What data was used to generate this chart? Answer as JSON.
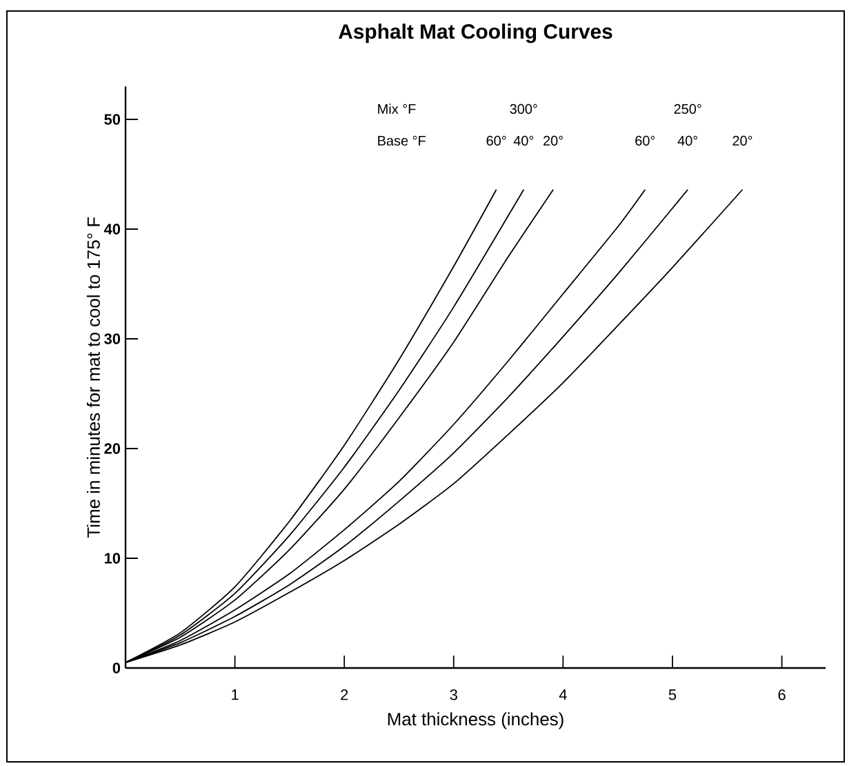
{
  "chart_data": {
    "type": "line",
    "title": "Asphalt Mat Cooling Curves",
    "xlabel": "Mat thickness  (inches)",
    "ylabel": "Time in minutes for mat to cool to 175° F",
    "annotations": [
      "Mix °F",
      "Base °F",
      "300°",
      "250°"
    ],
    "xlim": [
      0,
      6.4
    ],
    "ylim": [
      0,
      53
    ],
    "xticks": [
      1,
      2,
      3,
      4,
      5,
      6
    ],
    "yticks": [
      0,
      10,
      20,
      30,
      40,
      50
    ],
    "grid": false,
    "legend": false,
    "marker": "none",
    "line_style": "solid",
    "series": [
      {
        "name": "60°",
        "color": "#000000",
        "x": [
          0,
          0.5,
          1,
          1.5,
          2,
          2.5,
          3,
          3.39
        ],
        "values": [
          0.5,
          3.2,
          7.4,
          13.4,
          20.3,
          28.1,
          36.6,
          43.6
        ]
      },
      {
        "name": "40°",
        "color": "#000000",
        "x": [
          0,
          0.5,
          1,
          1.5,
          2,
          2.5,
          3,
          3.64
        ],
        "values": [
          0.5,
          3.0,
          6.8,
          12.1,
          18.3,
          25.3,
          32.9,
          43.6
        ]
      },
      {
        "name": "20°",
        "color": "#000000",
        "x": [
          0,
          0.5,
          1,
          1.5,
          2,
          2.5,
          3,
          3.5,
          3.91
        ],
        "values": [
          0.5,
          2.8,
          6.2,
          10.8,
          16.3,
          22.8,
          29.7,
          37.5,
          43.6
        ]
      },
      {
        "name": "60°",
        "color": "#000000",
        "x": [
          0,
          0.5,
          1,
          1.5,
          2,
          2.5,
          3,
          3.5,
          4,
          4.5,
          4.75
        ],
        "values": [
          0.5,
          2.5,
          5.3,
          8.6,
          12.6,
          17.0,
          22.2,
          28.0,
          34.1,
          40.2,
          43.6
        ]
      },
      {
        "name": "40°",
        "color": "#000000",
        "x": [
          0,
          0.5,
          1,
          1.5,
          2,
          2.5,
          3,
          3.5,
          4,
          4.5,
          5,
          5.14
        ],
        "values": [
          0.5,
          2.3,
          4.7,
          7.6,
          11.1,
          15.2,
          19.6,
          24.7,
          30.2,
          35.9,
          41.9,
          43.6
        ]
      },
      {
        "name": "20°",
        "color": "#000000",
        "x": [
          0,
          0.5,
          1,
          1.5,
          2,
          2.5,
          3,
          3.5,
          4,
          4.5,
          5,
          5.64
        ],
        "values": [
          0.5,
          2.1,
          4.2,
          6.9,
          9.8,
          13.1,
          16.8,
          21.3,
          26.0,
          31.2,
          36.5,
          43.6
        ]
      }
    ]
  }
}
